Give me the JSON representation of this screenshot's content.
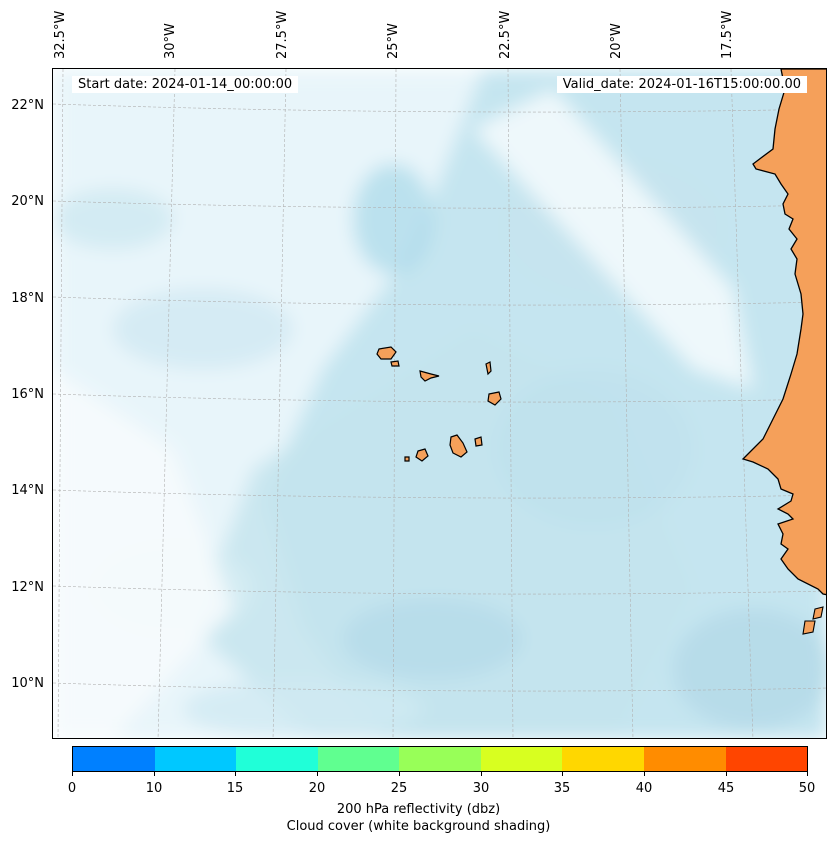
{
  "map": {
    "start_date": "Start date: 2024-01-14_00:00:00",
    "valid_date": "Valid_date: 2024-01-16T15:00:00.00",
    "lon_labels": [
      "32.5°W",
      "30°W",
      "27.5°W",
      "25°W",
      "22.5°W",
      "20°W",
      "17.5°W"
    ],
    "lat_labels": [
      "22°N",
      "20°N",
      "18°N",
      "16°N",
      "14°N",
      "12°N",
      "10°N"
    ],
    "land_color": "#f5a05a",
    "cloud_color": "#add8e6"
  },
  "colorbar": {
    "ticks": [
      "0",
      "10",
      "15",
      "20",
      "25",
      "30",
      "35",
      "40",
      "45",
      "50"
    ],
    "colors": [
      "#0080ff",
      "#00c8ff",
      "#20ffd8",
      "#60ff90",
      "#98ff58",
      "#d8ff20",
      "#ffd700",
      "#ff8c00",
      "#ff4500"
    ],
    "title_line1": "200 hPa reflectivity (dbz)",
    "title_line2": "Cloud cover (white background shading)"
  }
}
